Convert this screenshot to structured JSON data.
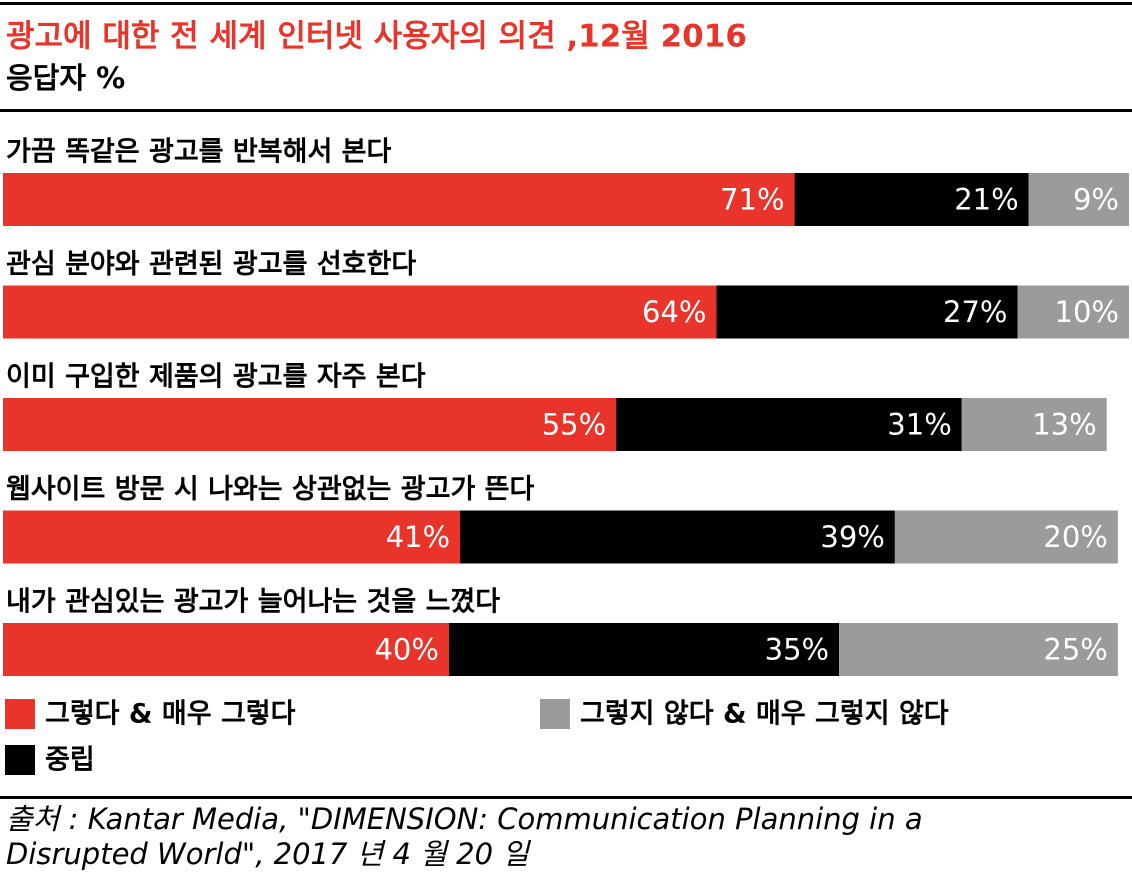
{
  "chart_data": {
    "type": "stacked_bar_horizontal",
    "title": "광고에 대한 전 세계 인터넷 사용자의 의견 ,12월 2016",
    "subtitle": "응답자 %",
    "categories": [
      "가끔 똑같은 광고를 반복해서 본다",
      "관심 분야와 관련된 광고를 선호한다",
      "이미 구입한 제품의 광고를 자주 본다",
      "웹사이트 방문 시 나와는 상관없는 광고가 뜬다",
      "내가 관심있는 광고가 늘어나는 것을 느꼈다"
    ],
    "series": [
      {
        "name": "그렇다 & 매우 그렇다",
        "color": "#e8342a",
        "values": [
          71,
          64,
          55,
          41,
          40
        ],
        "value_labels": [
          "71%",
          "64%",
          "55%",
          "41%",
          "40%"
        ]
      },
      {
        "name": "중립",
        "color": "#000000",
        "values": [
          21,
          27,
          31,
          39,
          35
        ],
        "value_labels": [
          "21%",
          "27%",
          "31%",
          "39%",
          "35%"
        ]
      },
      {
        "name": "그렇지 않다 & 매우 그렇지 않다",
        "color": "#9b9b9b",
        "values": [
          9,
          10,
          13,
          20,
          25
        ],
        "value_labels": [
          "9%",
          "10%",
          "13%",
          "20%",
          "25%"
        ]
      }
    ],
    "xlim": [
      0,
      101
    ],
    "source": "출처 : Kantar Media, \"DIMENSION: Communication Planning in a Disrupted World\", 2017 년 4 월 20 일"
  }
}
